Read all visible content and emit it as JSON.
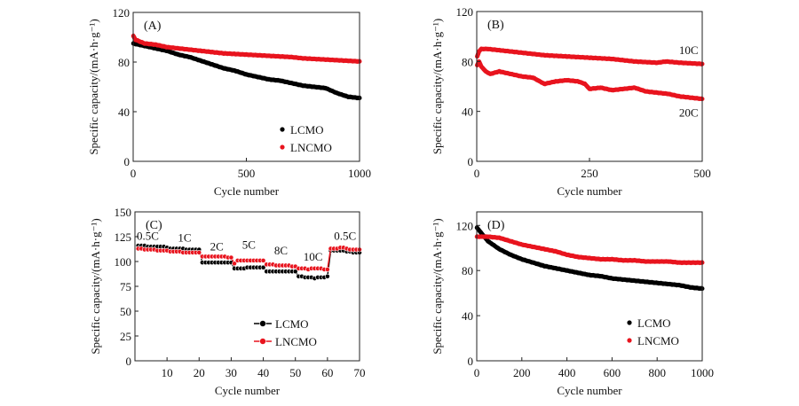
{
  "chart_data": [
    {
      "type": "scatter",
      "panel_label": "(A)",
      "xlabel": "Cycle number",
      "ylabel": "Specific capacity/(mA·h·g⁻¹)",
      "xlim": [
        0,
        1000
      ],
      "ylim": [
        0,
        120
      ],
      "xticks": [
        0,
        500,
        1000
      ],
      "yticks": [
        0,
        40,
        80,
        120
      ],
      "xtick_labels": [
        "0",
        "500",
        "1000"
      ],
      "ytick_labels": [
        "0",
        "40",
        "80",
        "120"
      ],
      "legend_position": "bottom-right",
      "legend_style": "marker",
      "series": [
        {
          "name": "LCMO",
          "color": "#000000",
          "x": [
            1,
            50,
            100,
            150,
            200,
            250,
            300,
            350,
            400,
            450,
            500,
            550,
            600,
            650,
            700,
            750,
            800,
            850,
            900,
            950,
            1000
          ],
          "y": [
            95,
            93,
            91,
            89,
            86,
            84,
            81,
            78,
            75,
            73,
            70,
            68,
            66,
            65,
            63,
            61,
            60,
            59,
            55,
            52,
            51
          ]
        },
        {
          "name": "LNCMO",
          "color": "#e8141e",
          "x": [
            1,
            10,
            50,
            100,
            150,
            200,
            250,
            300,
            350,
            400,
            450,
            500,
            550,
            600,
            650,
            700,
            750,
            800,
            850,
            900,
            950,
            1000
          ],
          "y": [
            101,
            98,
            95,
            94,
            92,
            91,
            90,
            89,
            88,
            87,
            86.5,
            86,
            85.5,
            85,
            84.5,
            84,
            83,
            82.5,
            82,
            81.5,
            81,
            80.5
          ]
        }
      ]
    },
    {
      "type": "scatter",
      "panel_label": "(B)",
      "xlabel": "Cycle number",
      "ylabel": "Specific capacity/(mA·h·g⁻¹)",
      "xlim": [
        0,
        500
      ],
      "ylim": [
        0,
        120
      ],
      "xticks": [
        0,
        250,
        500
      ],
      "yticks": [
        0,
        40,
        80,
        120
      ],
      "xtick_labels": [
        "0",
        "250",
        "500"
      ],
      "ytick_labels": [
        "0",
        "40",
        "80",
        "120"
      ],
      "annotations": [
        {
          "text": "10C",
          "x": 470,
          "y": 86
        },
        {
          "text": "20C",
          "x": 470,
          "y": 36
        }
      ],
      "series": [
        {
          "name": "10C",
          "color": "#e8141e",
          "x": [
            1,
            5,
            10,
            25,
            50,
            100,
            150,
            200,
            250,
            300,
            350,
            400,
            420,
            450,
            500
          ],
          "y": [
            84,
            88,
            90,
            90,
            89,
            87,
            85,
            84,
            83,
            82,
            80,
            79,
            80,
            79,
            78
          ]
        },
        {
          "name": "20C",
          "color": "#e8141e",
          "x": [
            1,
            5,
            10,
            20,
            30,
            50,
            75,
            100,
            125,
            150,
            175,
            200,
            225,
            240,
            250,
            275,
            300,
            325,
            350,
            375,
            400,
            425,
            450,
            475,
            500
          ],
          "y": [
            77,
            80,
            76,
            72,
            70,
            72,
            70,
            68,
            67,
            62,
            64,
            65,
            64,
            62,
            58,
            59,
            57,
            58,
            59,
            56,
            55,
            54,
            52,
            51,
            50
          ]
        }
      ]
    },
    {
      "type": "line",
      "panel_label": "(C)",
      "xlabel": "Cycle number",
      "ylabel": "Specific capacity/(mA·h·g⁻¹)",
      "xlim": [
        0,
        70
      ],
      "ylim": [
        0,
        150
      ],
      "xticks": [
        10,
        20,
        30,
        40,
        50,
        60,
        70
      ],
      "yticks": [
        0,
        25,
        50,
        75,
        100,
        125,
        150
      ],
      "xtick_labels": [
        "10",
        "20",
        "30",
        "40",
        "50",
        "60",
        "70"
      ],
      "ytick_labels": [
        "0",
        "25",
        "50",
        "75",
        "100",
        "125",
        "150"
      ],
      "legend_position": "bottom-right",
      "legend_style": "line-marker",
      "annotations": [
        {
          "text": "0.5C",
          "x": 4,
          "y": 122
        },
        {
          "text": "1C",
          "x": 15.5,
          "y": 120
        },
        {
          "text": "2C",
          "x": 25.5,
          "y": 111
        },
        {
          "text": "5C",
          "x": 35.5,
          "y": 113
        },
        {
          "text": "8C",
          "x": 45.5,
          "y": 107
        },
        {
          "text": "10C",
          "x": 55.5,
          "y": 101
        },
        {
          "text": "0.5C",
          "x": 65.5,
          "y": 122
        }
      ],
      "series": [
        {
          "name": "LCMO",
          "color": "#000000",
          "x": [
            1,
            2,
            3,
            4,
            5,
            6,
            7,
            8,
            9,
            10,
            11,
            12,
            13,
            14,
            15,
            16,
            17,
            18,
            19,
            20,
            21,
            22,
            23,
            24,
            25,
            26,
            27,
            28,
            29,
            30,
            31,
            32,
            33,
            34,
            35,
            36,
            37,
            38,
            39,
            40,
            41,
            42,
            43,
            44,
            45,
            46,
            47,
            48,
            49,
            50,
            51,
            52,
            53,
            54,
            55,
            56,
            57,
            58,
            59,
            60,
            61,
            62,
            63,
            64,
            65,
            66,
            67,
            68,
            69,
            70
          ],
          "y": [
            116,
            116,
            116,
            115,
            115,
            115,
            115,
            115,
            115,
            114,
            113,
            113,
            113,
            113,
            113,
            112,
            112,
            112,
            112,
            112,
            99,
            99,
            99,
            99,
            99,
            99,
            99,
            99,
            99,
            99,
            93,
            93,
            93,
            93,
            94,
            94,
            94,
            94,
            94,
            94,
            90,
            90,
            90,
            90,
            90,
            90,
            90,
            90,
            90,
            90,
            85,
            85,
            84,
            84,
            84,
            83,
            84,
            84,
            84,
            85,
            111,
            111,
            111,
            111,
            111,
            110,
            110,
            109,
            109,
            109
          ]
        },
        {
          "name": "LNCMO",
          "color": "#e8141e",
          "x": [
            1,
            2,
            3,
            4,
            5,
            6,
            7,
            8,
            9,
            10,
            11,
            12,
            13,
            14,
            15,
            16,
            17,
            18,
            19,
            20,
            21,
            22,
            23,
            24,
            25,
            26,
            27,
            28,
            29,
            30,
            31,
            32,
            33,
            34,
            35,
            36,
            37,
            38,
            39,
            40,
            41,
            42,
            43,
            44,
            45,
            46,
            47,
            48,
            49,
            50,
            51,
            52,
            53,
            54,
            55,
            56,
            57,
            58,
            59,
            60,
            61,
            62,
            63,
            64,
            65,
            66,
            67,
            68,
            69,
            70
          ],
          "y": [
            113,
            113,
            112,
            112,
            112,
            112,
            111,
            111,
            111,
            111,
            110,
            110,
            110,
            110,
            109,
            109,
            109,
            109,
            109,
            109,
            105,
            105,
            105,
            105,
            105,
            105,
            105,
            105,
            104,
            104,
            98,
            101,
            101,
            101,
            101,
            101,
            101,
            101,
            101,
            101,
            97,
            97,
            97,
            96,
            96,
            96,
            96,
            96,
            95,
            95,
            93,
            93,
            93,
            92,
            93,
            93,
            93,
            93,
            92,
            92,
            113,
            113,
            113,
            114,
            114,
            113,
            112,
            112,
            112,
            112
          ]
        }
      ]
    },
    {
      "type": "scatter",
      "panel_label": "(D)",
      "xlabel": "Cycle number",
      "ylabel": "Specific capacity/(mA·h·g⁻¹)",
      "xlim": [
        0,
        1000
      ],
      "ylim": [
        0,
        132
      ],
      "xticks": [
        0,
        200,
        400,
        600,
        800,
        1000
      ],
      "yticks": [
        0,
        40,
        80,
        120
      ],
      "xtick_labels": [
        "0",
        "200",
        "400",
        "600",
        "800",
        "1000"
      ],
      "ytick_labels": [
        "0",
        "40",
        "80",
        "120"
      ],
      "legend_position": "bottom-right",
      "legend_style": "marker",
      "series": [
        {
          "name": "LCMO",
          "color": "#000000",
          "x": [
            1,
            25,
            50,
            100,
            150,
            200,
            250,
            300,
            350,
            400,
            450,
            500,
            550,
            600,
            650,
            700,
            750,
            800,
            850,
            900,
            950,
            1000
          ],
          "y": [
            118,
            112,
            106,
            99,
            94,
            90,
            87,
            84,
            82,
            80,
            78,
            76,
            75,
            73,
            72,
            71,
            70,
            69,
            68,
            67,
            65,
            64
          ]
        },
        {
          "name": "LNCMO",
          "color": "#e8141e",
          "x": [
            1,
            50,
            100,
            150,
            200,
            250,
            300,
            350,
            400,
            450,
            500,
            550,
            600,
            650,
            700,
            750,
            800,
            850,
            900,
            950,
            1000
          ],
          "y": [
            110,
            110,
            109,
            106,
            103,
            101,
            99,
            97,
            94,
            92,
            91,
            90,
            90,
            89,
            89,
            88,
            88,
            88,
            87,
            87,
            87
          ]
        }
      ]
    }
  ]
}
